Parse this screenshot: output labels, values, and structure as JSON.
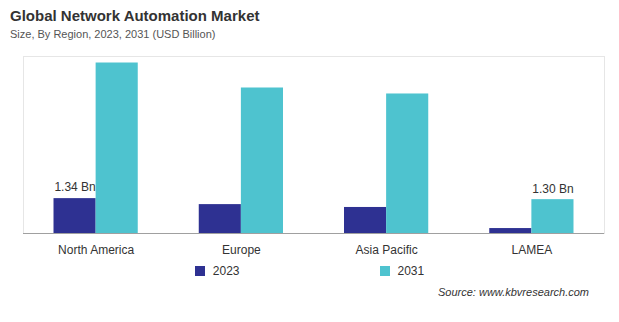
{
  "chart_data": {
    "type": "bar",
    "title": "Global Network Automation Market",
    "subtitle": "Size, By Region, 2023, 2031 (USD Billion)",
    "source": "Source: www.kbvresearch.com",
    "categories": [
      "North America",
      "Europe",
      "Asia Pacific",
      "LAMEA"
    ],
    "series": [
      {
        "name": "2023",
        "color": "#2e3192",
        "values": [
          1.34,
          1.11,
          1.0,
          0.19
        ],
        "value_labels": [
          "1.34 Bn",
          null,
          null,
          null
        ]
      },
      {
        "name": "2031",
        "color": "#4ec3cf",
        "values": [
          6.55,
          5.59,
          5.36,
          1.3
        ],
        "value_labels": [
          null,
          null,
          null,
          "1.30 Bn"
        ]
      }
    ],
    "ylim": [
      0,
      6.8
    ],
    "tick_labels": "x",
    "legend": "bottom"
  }
}
